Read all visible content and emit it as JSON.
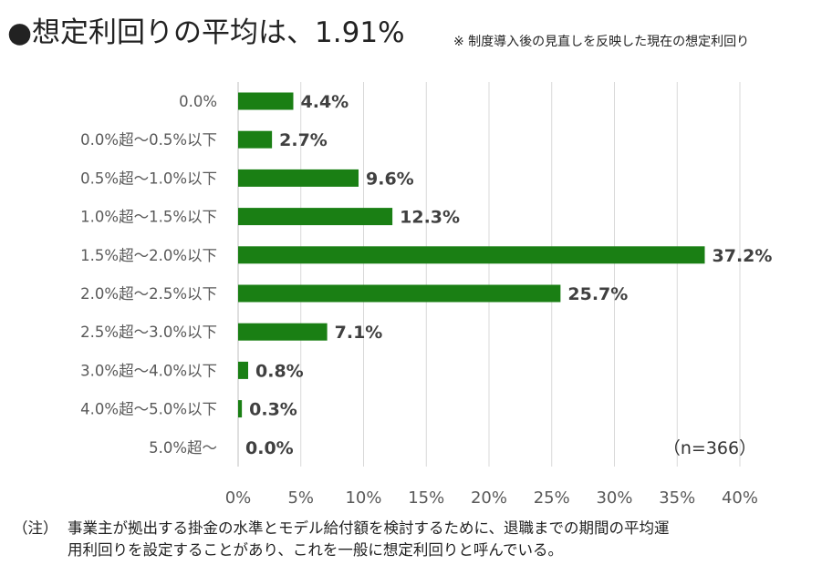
{
  "title": "●想定利回りの平均は、1.91%",
  "title_note": "※ 制度導入後の見直しを反映した現在の想定利回り",
  "sample_size": "（n=366）",
  "footnote": {
    "marker": "（注）",
    "line1": "事業主が拠出する掛金の水準とモデル給付額を検討するために、退職までの期間の平均運",
    "line2": "用利回りを設定することがあり、これを一般に想定利回りと呼んでいる。"
  },
  "colors": {
    "bar": "#1a7f14",
    "grid": "#d9d9d9",
    "axis": "#bfbfbf",
    "label": "#595959",
    "value": "#404040"
  },
  "chart_data": {
    "type": "bar",
    "orientation": "horizontal",
    "categories": [
      "0.0%",
      "0.0%超～0.5%以下",
      "0.5%超～1.0%以下",
      "1.0%超～1.5%以下",
      "1.5%超～2.0%以下",
      "2.0%超～2.5%以下",
      "2.5%超～3.0%以下",
      "3.0%超～4.0%以下",
      "4.0%超～5.0%以下",
      "5.0%超～"
    ],
    "values": [
      4.4,
      2.7,
      9.6,
      12.3,
      37.2,
      25.7,
      7.1,
      0.8,
      0.3,
      0.0
    ],
    "value_labels": [
      "4.4%",
      "2.7%",
      "9.6%",
      "12.3%",
      "37.2%",
      "25.7%",
      "7.1%",
      "0.8%",
      "0.3%",
      "0.0%"
    ],
    "xlim": [
      0,
      40
    ],
    "x_ticks": [
      0,
      5,
      10,
      15,
      20,
      25,
      30,
      35,
      40
    ],
    "x_tick_labels": [
      "0%",
      "5%",
      "10%",
      "15%",
      "20%",
      "25%",
      "30%",
      "35%",
      "40%"
    ],
    "grid": true
  }
}
